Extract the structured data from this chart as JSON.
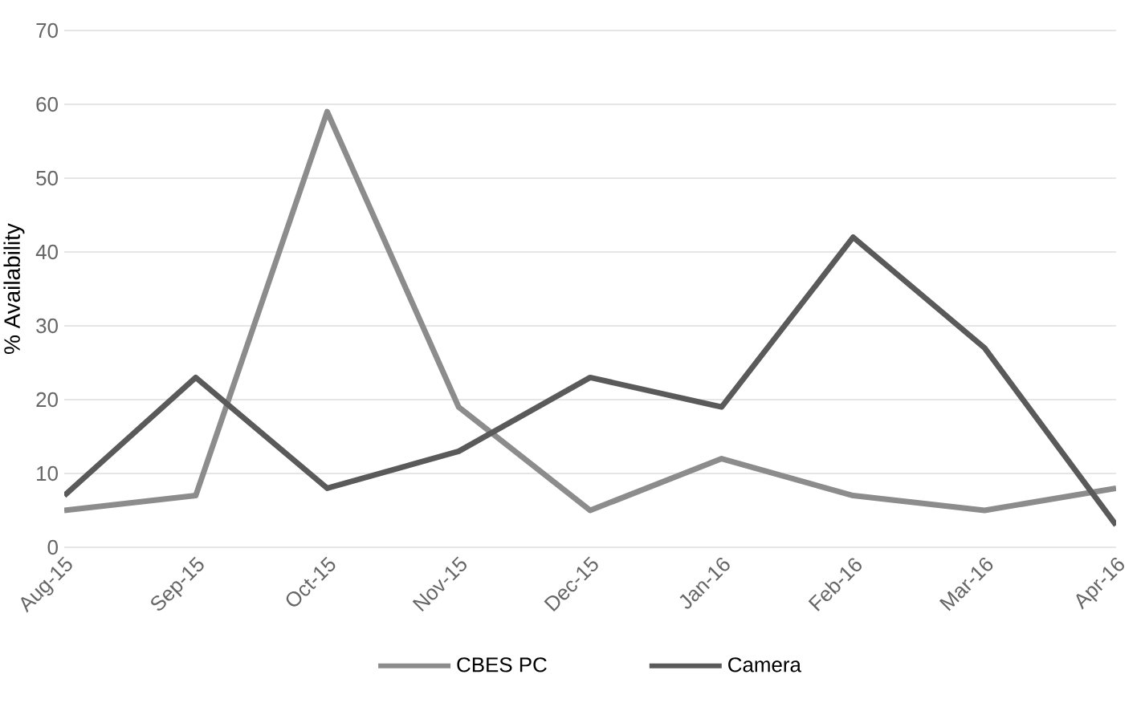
{
  "chart_data": {
    "type": "line",
    "ylabel": "% Availability",
    "categories": [
      "Aug-15",
      "Sep-15",
      "Oct-15",
      "Nov-15",
      "Dec-15",
      "Jan-16",
      "Feb-16",
      "Mar-16",
      "Apr-16"
    ],
    "series": [
      {
        "name": "CBES PC",
        "color": "#8c8c8c",
        "values": [
          5,
          7,
          59,
          19,
          5,
          12,
          7,
          5,
          8
        ]
      },
      {
        "name": "Camera",
        "color": "#5a5a5a",
        "values": [
          7,
          23,
          8,
          13,
          23,
          19,
          42,
          27,
          3
        ]
      }
    ],
    "ylim": [
      0,
      70
    ],
    "yticks": [
      0,
      10,
      20,
      30,
      40,
      50,
      60,
      70
    ],
    "grid": "y",
    "legend": "bottom",
    "marker": "none",
    "line_style": "solid"
  }
}
